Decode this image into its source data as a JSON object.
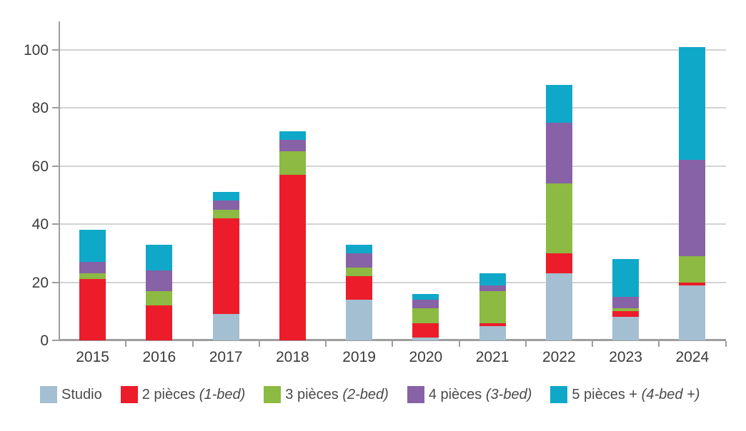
{
  "chart_data": {
    "type": "bar",
    "stacked": true,
    "title": "",
    "xlabel": "",
    "ylabel": "",
    "categories": [
      "2015",
      "2016",
      "2017",
      "2018",
      "2019",
      "2020",
      "2021",
      "2022",
      "2023",
      "2024"
    ],
    "series": [
      {
        "name": "Studio",
        "italic": "",
        "color": "#a3bfd1",
        "values": [
          0,
          0,
          9,
          0,
          14,
          1,
          5,
          23,
          8,
          19
        ]
      },
      {
        "name": "2 pièces",
        "italic": "(1-bed)",
        "color": "#ec1c2a",
        "values": [
          21,
          12,
          33,
          57,
          8,
          5,
          1,
          7,
          2,
          1
        ]
      },
      {
        "name": "3 pièces",
        "italic": "(2-bed)",
        "color": "#8cba42",
        "values": [
          2,
          5,
          3,
          8,
          3,
          5,
          11,
          24,
          1,
          9
        ]
      },
      {
        "name": "4 pièces",
        "italic": "(3-bed)",
        "color": "#8862a6",
        "values": [
          4,
          7,
          3,
          4,
          5,
          3,
          2,
          21,
          4,
          33
        ]
      },
      {
        "name": "5 pièces +",
        "italic": "(4-bed +)",
        "color": "#0fa8c8",
        "values": [
          11,
          9,
          3,
          3,
          3,
          2,
          4,
          13,
          13,
          39
        ]
      }
    ],
    "yticks": [
      0,
      20,
      40,
      60,
      80,
      100
    ],
    "ylim": [
      0,
      110
    ],
    "grid": true,
    "legend_position": "bottom",
    "axis_color": "#9e9e9e",
    "gridline_color": "#d3d3d3",
    "text_color": "#3b3b3b"
  }
}
